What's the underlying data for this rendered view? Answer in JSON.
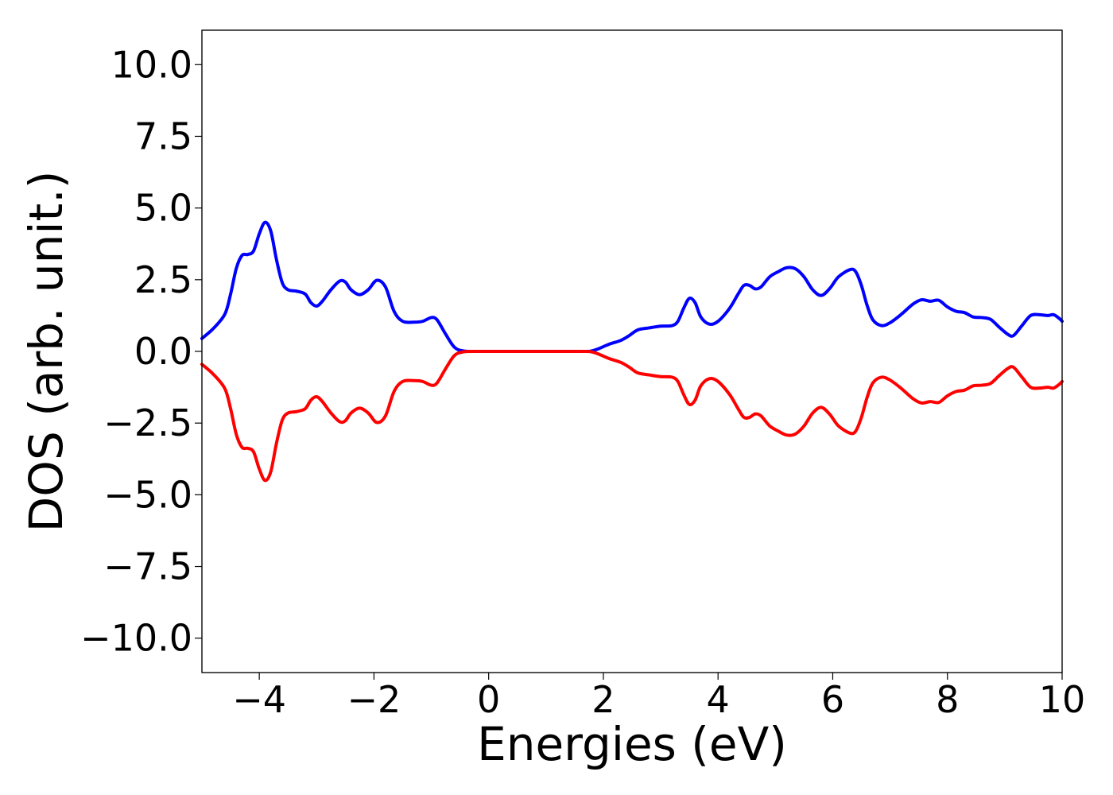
{
  "chart_data": {
    "type": "line",
    "xlabel": "Energies (eV)",
    "ylabel": "DOS (arb. unit.)",
    "xlim": [
      -5,
      10
    ],
    "ylim": [
      -11.2,
      11.2
    ],
    "grid": false,
    "legend": "none",
    "x_ticks": [
      {
        "value": -4,
        "label": "−4"
      },
      {
        "value": -2,
        "label": "−2"
      },
      {
        "value": 0,
        "label": "0"
      },
      {
        "value": 2,
        "label": "2"
      },
      {
        "value": 4,
        "label": "4"
      },
      {
        "value": 6,
        "label": "6"
      },
      {
        "value": 8,
        "label": "8"
      },
      {
        "value": 10,
        "label": "10"
      }
    ],
    "y_ticks": [
      {
        "value": 10,
        "label": "10.0"
      },
      {
        "value": 7.5,
        "label": "7.5"
      },
      {
        "value": 5,
        "label": "5.0"
      },
      {
        "value": 2.5,
        "label": "2.5"
      },
      {
        "value": 0,
        "label": "0.0"
      },
      {
        "value": -2.5,
        "label": "−2.5"
      },
      {
        "value": -5,
        "label": "−5.0"
      },
      {
        "value": -7.5,
        "label": "−7.5"
      },
      {
        "value": -10,
        "label": "−10.0"
      }
    ],
    "mirror_series": true,
    "series": [
      {
        "color": "#0000ff",
        "sign": 1,
        "points": [
          [
            -5.0,
            0.45
          ],
          [
            -4.8,
            0.8
          ],
          [
            -4.6,
            1.3
          ],
          [
            -4.5,
            2.0
          ],
          [
            -4.4,
            2.9
          ],
          [
            -4.3,
            3.35
          ],
          [
            -4.2,
            3.38
          ],
          [
            -4.1,
            3.5
          ],
          [
            -4.0,
            4.1
          ],
          [
            -3.9,
            4.5
          ],
          [
            -3.8,
            4.2
          ],
          [
            -3.7,
            3.2
          ],
          [
            -3.6,
            2.4
          ],
          [
            -3.5,
            2.15
          ],
          [
            -3.35,
            2.1
          ],
          [
            -3.2,
            2.0
          ],
          [
            -3.1,
            1.7
          ],
          [
            -3.0,
            1.58
          ],
          [
            -2.9,
            1.75
          ],
          [
            -2.75,
            2.15
          ],
          [
            -2.6,
            2.45
          ],
          [
            -2.5,
            2.42
          ],
          [
            -2.4,
            2.15
          ],
          [
            -2.25,
            1.98
          ],
          [
            -2.1,
            2.15
          ],
          [
            -1.95,
            2.48
          ],
          [
            -1.8,
            2.25
          ],
          [
            -1.65,
            1.4
          ],
          [
            -1.5,
            1.05
          ],
          [
            -1.3,
            1.02
          ],
          [
            -1.15,
            1.05
          ],
          [
            -1.0,
            1.18
          ],
          [
            -0.9,
            1.1
          ],
          [
            -0.75,
            0.6
          ],
          [
            -0.6,
            0.15
          ],
          [
            -0.45,
            0.02
          ],
          [
            -0.2,
            0.0
          ],
          [
            0.5,
            0.0
          ],
          [
            1.2,
            0.0
          ],
          [
            1.7,
            0.0
          ],
          [
            1.8,
            0.02
          ],
          [
            1.9,
            0.08
          ],
          [
            2.1,
            0.25
          ],
          [
            2.3,
            0.38
          ],
          [
            2.45,
            0.55
          ],
          [
            2.6,
            0.75
          ],
          [
            2.8,
            0.82
          ],
          [
            3.0,
            0.88
          ],
          [
            3.2,
            0.9
          ],
          [
            3.3,
            1.05
          ],
          [
            3.4,
            1.5
          ],
          [
            3.5,
            1.85
          ],
          [
            3.6,
            1.7
          ],
          [
            3.7,
            1.2
          ],
          [
            3.85,
            0.95
          ],
          [
            4.0,
            1.05
          ],
          [
            4.2,
            1.5
          ],
          [
            4.35,
            2.0
          ],
          [
            4.45,
            2.3
          ],
          [
            4.55,
            2.3
          ],
          [
            4.65,
            2.18
          ],
          [
            4.75,
            2.25
          ],
          [
            4.9,
            2.6
          ],
          [
            5.05,
            2.78
          ],
          [
            5.2,
            2.92
          ],
          [
            5.35,
            2.88
          ],
          [
            5.5,
            2.6
          ],
          [
            5.65,
            2.15
          ],
          [
            5.8,
            1.95
          ],
          [
            5.95,
            2.2
          ],
          [
            6.1,
            2.6
          ],
          [
            6.3,
            2.85
          ],
          [
            6.4,
            2.78
          ],
          [
            6.5,
            2.3
          ],
          [
            6.6,
            1.6
          ],
          [
            6.7,
            1.1
          ],
          [
            6.85,
            0.9
          ],
          [
            7.0,
            1.0
          ],
          [
            7.2,
            1.3
          ],
          [
            7.4,
            1.65
          ],
          [
            7.55,
            1.8
          ],
          [
            7.7,
            1.75
          ],
          [
            7.85,
            1.78
          ],
          [
            8.0,
            1.55
          ],
          [
            8.15,
            1.4
          ],
          [
            8.3,
            1.35
          ],
          [
            8.45,
            1.2
          ],
          [
            8.6,
            1.18
          ],
          [
            8.75,
            1.12
          ],
          [
            8.9,
            0.85
          ],
          [
            9.05,
            0.6
          ],
          [
            9.15,
            0.55
          ],
          [
            9.3,
            0.9
          ],
          [
            9.45,
            1.25
          ],
          [
            9.6,
            1.28
          ],
          [
            9.75,
            1.25
          ],
          [
            9.85,
            1.28
          ],
          [
            9.95,
            1.15
          ],
          [
            10.0,
            1.05
          ]
        ]
      },
      {
        "color": "#ff0000",
        "sign": -1
      }
    ]
  }
}
